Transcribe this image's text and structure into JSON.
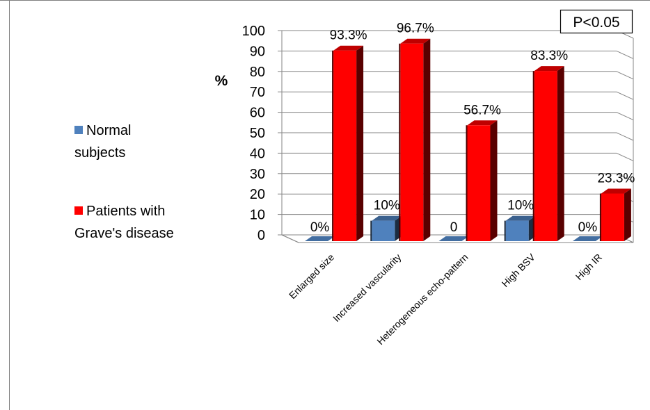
{
  "chart_data": {
    "type": "bar",
    "title": "",
    "xlabel": "",
    "ylabel": "%",
    "ylim": [
      0,
      100
    ],
    "yticks": [
      0,
      10,
      20,
      30,
      40,
      50,
      60,
      70,
      80,
      90,
      100
    ],
    "grid": true,
    "legend_position": "left",
    "annotation": "P<0.05",
    "categories": [
      "Enlarged size",
      "Increased vascularity",
      "Heterogeneous echo-pattern",
      "High BSV",
      "High IR"
    ],
    "series": [
      {
        "name": "Normal subjects",
        "color": "#4f81bd",
        "values": [
          0,
          10,
          0,
          10,
          0
        ],
        "labels": [
          "0%",
          "10%",
          "0",
          "10%",
          "0%"
        ]
      },
      {
        "name": "Patients with Grave's disease",
        "color": "#ff0000",
        "values": [
          93.3,
          96.7,
          56.7,
          83.3,
          23.3
        ],
        "labels": [
          "93.3%",
          "96.7%",
          "56.7%",
          "83.3%",
          "23.3%"
        ]
      }
    ],
    "legend_lines": [
      [
        "Normal",
        "subjects"
      ],
      [
        "Patients with",
        "Grave's disease"
      ]
    ]
  }
}
